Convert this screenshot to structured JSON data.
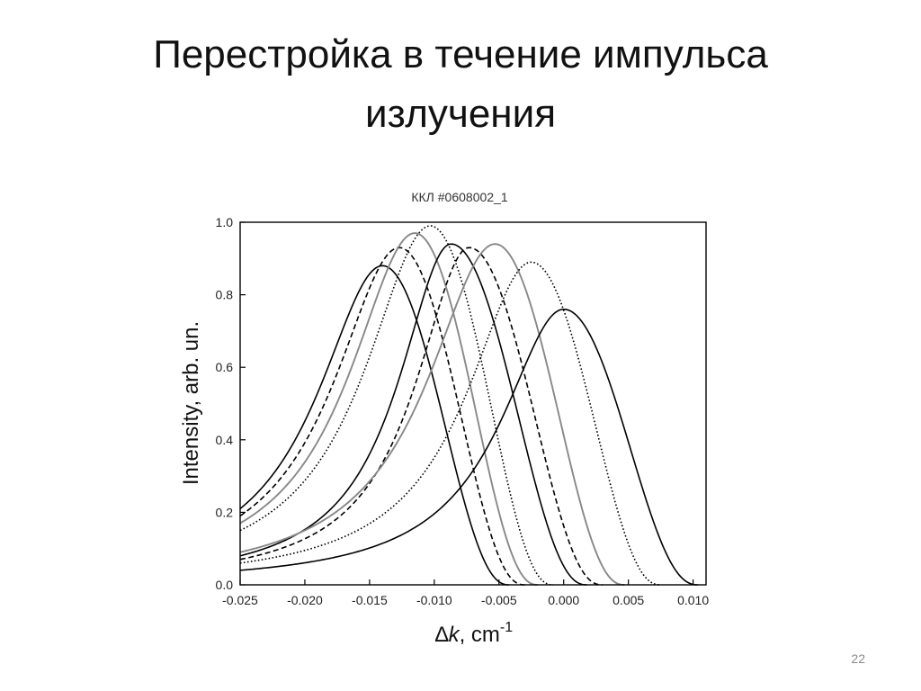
{
  "slide": {
    "title_line1": "Перестройка в течение импульса",
    "title_line2": "излучения",
    "page_number": "22"
  },
  "chart_data": {
    "type": "line",
    "title": "ККЛ #0608002_1",
    "xlabel_symbol": "∆",
    "xlabel_var": "k",
    "xlabel_unit": ", cm",
    "xlabel_exp": "-1",
    "ylabel": "Intensity, arb. un.",
    "xlim": [
      -0.025,
      0.011
    ],
    "ylim": [
      0,
      1.0
    ],
    "xticks": [
      -0.025,
      -0.02,
      -0.015,
      -0.01,
      -0.005,
      0.0,
      0.005,
      0.01
    ],
    "xtick_labels": [
      "-0.025",
      "-0.020",
      "-0.015",
      "-0.010",
      "-0.005",
      "0.000",
      "0.005",
      "0.010"
    ],
    "yticks": [
      0.0,
      0.2,
      0.4,
      0.6,
      0.8,
      1.0
    ],
    "ytick_labels": [
      "0.0",
      "0.2",
      "0.4",
      "0.6",
      "0.8",
      "1.0"
    ],
    "grid": false,
    "series": [
      {
        "peak_x": -0.014,
        "peak_y": 0.88,
        "y_at_xmin": 0.21,
        "zero_x": -0.0042,
        "color": "#000000",
        "dash": "solid"
      },
      {
        "peak_x": -0.0127,
        "peak_y": 0.93,
        "y_at_xmin": 0.19,
        "zero_x": -0.003,
        "color": "#000000",
        "dash": "dashed"
      },
      {
        "peak_x": -0.0115,
        "peak_y": 0.97,
        "y_at_xmin": 0.17,
        "zero_x": -0.002,
        "color": "#888888",
        "dash": "solid"
      },
      {
        "peak_x": -0.0103,
        "peak_y": 0.99,
        "y_at_xmin": 0.15,
        "zero_x": -0.0008,
        "color": "#000000",
        "dash": "dotted"
      },
      {
        "peak_x": -0.0087,
        "peak_y": 0.94,
        "y_at_xmin": 0.08,
        "zero_x": 0.0018,
        "color": "#000000",
        "dash": "solid"
      },
      {
        "peak_x": -0.0073,
        "peak_y": 0.93,
        "y_at_xmin": 0.07,
        "zero_x": 0.003,
        "color": "#000000",
        "dash": "dashed"
      },
      {
        "peak_x": -0.0053,
        "peak_y": 0.94,
        "y_at_xmin": 0.09,
        "zero_x": 0.0047,
        "color": "#888888",
        "dash": "solid"
      },
      {
        "peak_x": -0.0025,
        "peak_y": 0.89,
        "y_at_xmin": 0.06,
        "zero_x": 0.0075,
        "color": "#000000",
        "dash": "dotted"
      },
      {
        "peak_x": 0.0,
        "peak_y": 0.76,
        "y_at_xmin": 0.04,
        "zero_x": 0.0104,
        "color": "#000000",
        "dash": "solid"
      }
    ]
  }
}
